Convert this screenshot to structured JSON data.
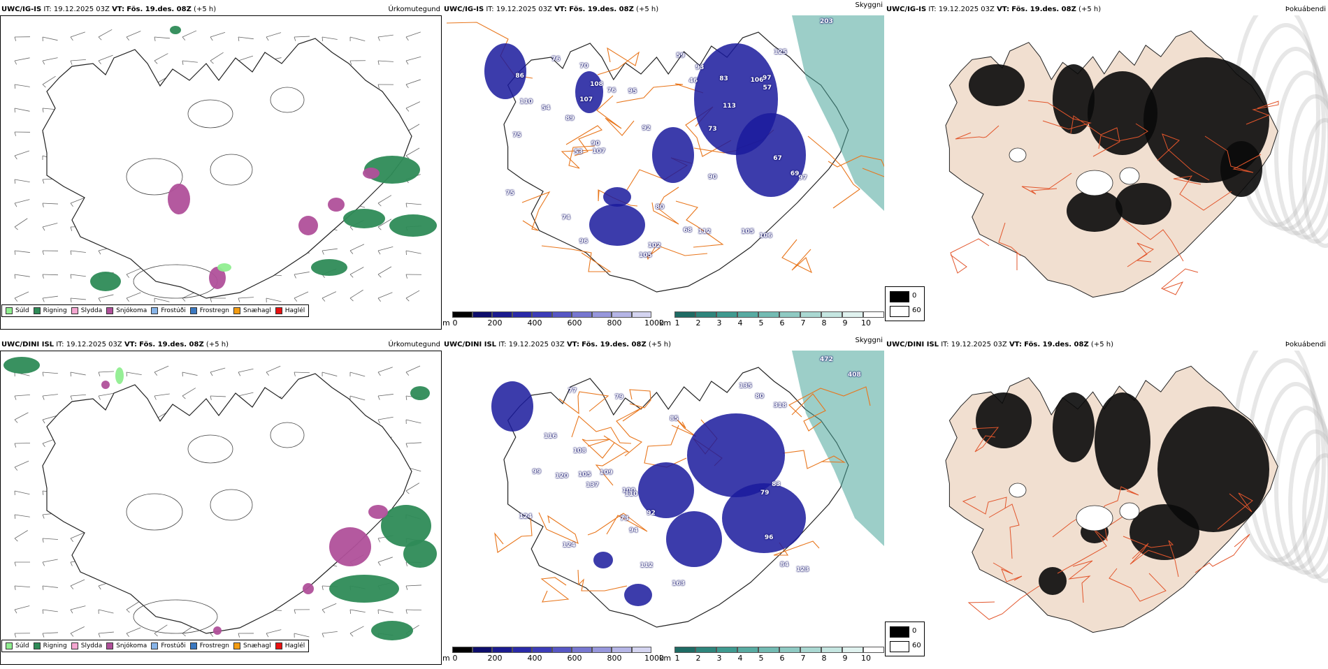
{
  "colors": {
    "drizzle": "#90ee90",
    "rain": "#2e8b57",
    "sleet": "#f4a6d0",
    "snow": "#b0509a",
    "freezing_drizzle": "#87b4e8",
    "freezing_rain": "#3a78c0",
    "snow_pellets": "#f39c12",
    "hail": "#e81010",
    "road": "#e8761c",
    "cloud_low": "#1a1a9c",
    "vis": "#4aa59a",
    "land": "#f1dfd0"
  },
  "rows": [
    {
      "model": "UWC/IG-IS",
      "it_label": "IT:",
      "it_value": "19.12.2025 03Z",
      "vt_label": "VT:",
      "vt_value": "Fös. 19.des. 08Z",
      "offset": "(+5 h)",
      "precip_title": "Úrkomutegund",
      "cloud_title": "Skyggni",
      "fog_title": "Þokuábendi",
      "ceiling_labels": [
        "203",
        "110",
        "107",
        "73",
        "102",
        "106",
        "105",
        "90",
        "107",
        "97",
        "97",
        "69",
        "108",
        "113",
        "74",
        "75",
        "96",
        "90",
        "95",
        "106",
        "68",
        "105",
        "67",
        "92",
        "80",
        "83",
        "89",
        "57",
        "93",
        "76",
        "53",
        "75",
        "112",
        "125",
        "54",
        "86",
        "70",
        "76",
        "46",
        "59"
      ]
    },
    {
      "model": "UWC/DINI ISL",
      "it_label": "IT:",
      "it_value": "19.12.2025 03Z",
      "vt_label": "VT:",
      "vt_value": "Fös. 19.des. 08Z",
      "offset": "(+5 h)",
      "precip_title": "Úrkomutegund",
      "cloud_title": "Skyggni",
      "fog_title": "Þokuábendi",
      "ceiling_labels": [
        "472",
        "408",
        "105",
        "108",
        "94",
        "116",
        "80",
        "79",
        "85",
        "135",
        "99",
        "79",
        "100",
        "318",
        "73",
        "123",
        "120",
        "112",
        "83",
        "124",
        "110",
        "92",
        "109",
        "163",
        "124",
        "96",
        "137",
        "84",
        "77"
      ]
    }
  ],
  "precip_legend": [
    {
      "label": "Súld",
      "color": "#90ee90"
    },
    {
      "label": "Rigning",
      "color": "#2e8b57"
    },
    {
      "label": "Slydda",
      "color": "#f4a6d0"
    },
    {
      "label": "Snjókoma",
      "color": "#b0509a"
    },
    {
      "label": "Frostúði",
      "color": "#87b4e8"
    },
    {
      "label": "Frostregn",
      "color": "#3a78c0"
    },
    {
      "label": "Snæhagl",
      "color": "#f39c12"
    },
    {
      "label": "Haglél",
      "color": "#e81010"
    }
  ],
  "cloud_scale": {
    "unit": "m",
    "ticks": [
      "0",
      "200",
      "400",
      "600",
      "800",
      "1000"
    ]
  },
  "vis_scale": {
    "unit": "km",
    "ticks": [
      "1",
      "2",
      "3",
      "4",
      "5",
      "6",
      "7",
      "8",
      "9",
      "10"
    ]
  },
  "fog_legend": {
    "low": "0",
    "high": "60"
  }
}
